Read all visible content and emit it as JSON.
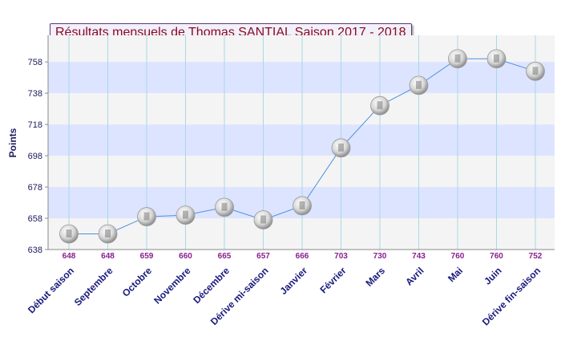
{
  "chart_data": {
    "type": "line",
    "title": "Résultats mensuels de Thomas SANTIAL Saison 2017 - 2018",
    "ylabel": "Points",
    "xlabel": "",
    "categories": [
      "Début saison",
      "Septembre",
      "Octobre",
      "Novembre",
      "Décembre",
      "Dérive mi-saison",
      "Janvier",
      "Février",
      "Mars",
      "Avril",
      "Mai",
      "Juin",
      "Dérive fin-saison"
    ],
    "values": [
      648,
      648,
      659,
      660,
      665,
      657,
      666,
      703,
      730,
      743,
      760,
      760,
      752
    ],
    "ylim": [
      638,
      775
    ],
    "yticks": [
      638,
      658,
      678,
      698,
      718,
      738,
      758
    ],
    "grid": true,
    "band_colors": [
      "#f4f4f4",
      "#dde4ff"
    ],
    "line_color": "#4a90e2",
    "point_label_color": "#8a2090"
  }
}
